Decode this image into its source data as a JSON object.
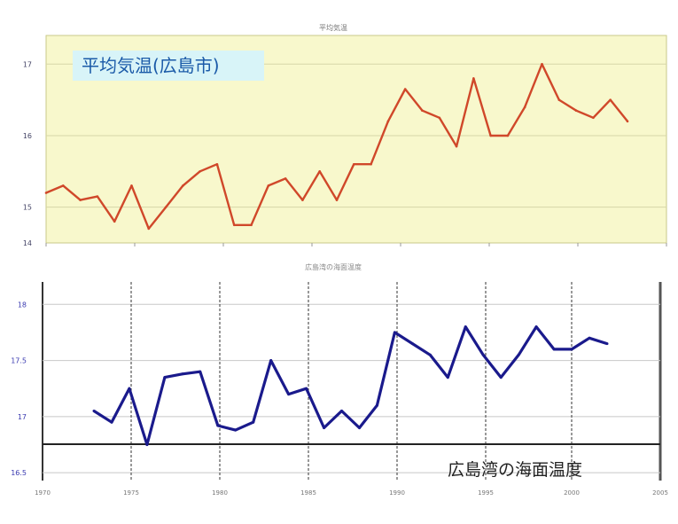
{
  "chart_data": [
    {
      "type": "line",
      "title": "平均気温(広島市)",
      "header_text": "平均気温",
      "ylim": [
        14.5,
        17.4
      ],
      "yticks": [
        "",
        "17",
        "16",
        "15",
        "14"
      ],
      "series": [
        {
          "color": "#d0482a",
          "values": [
            15.2,
            15.3,
            15.1,
            15.15,
            14.8,
            15.3,
            14.7,
            15.0,
            15.3,
            15.5,
            15.6,
            14.75,
            14.75,
            15.3,
            15.4,
            15.1,
            15.5,
            15.1,
            15.6,
            15.6,
            16.2,
            16.65,
            16.35,
            16.25,
            15.85,
            16.8,
            16.0,
            16.0,
            16.4,
            17.0,
            16.5,
            16.35,
            16.25,
            16.5,
            16.2
          ]
        }
      ]
    },
    {
      "type": "line",
      "title": "広島湾の海面温度",
      "header_text": "広島湾の海面温度",
      "ylim": [
        16.5,
        18.0
      ],
      "yticks": [
        "18",
        "17.5",
        "17",
        "16.5"
      ],
      "xtick_labels": [
        "1970",
        "1975",
        "1980",
        "1985",
        "1990",
        "1995",
        "2000",
        "2005"
      ],
      "series": [
        {
          "color": "#1a1a8c",
          "values": [
            17.05,
            16.95,
            17.25,
            16.75,
            17.35,
            17.38,
            17.4,
            16.92,
            16.88,
            16.95,
            17.5,
            17.2,
            17.25,
            16.9,
            17.05,
            16.9,
            17.1,
            17.75,
            17.65,
            17.55,
            17.35,
            17.8,
            17.55,
            17.35,
            17.55,
            17.8,
            17.6,
            17.6,
            17.7,
            17.65
          ]
        }
      ]
    }
  ],
  "top_legend_label": "平均気温(広島市)",
  "bottom_caption": "広島湾の海面温度",
  "colors": {
    "top_panel_bg": "#f8f8cc",
    "top_label_bg": "#d8f4f8",
    "top_line": "#d0482a",
    "bottom_line": "#1a1a8c"
  }
}
